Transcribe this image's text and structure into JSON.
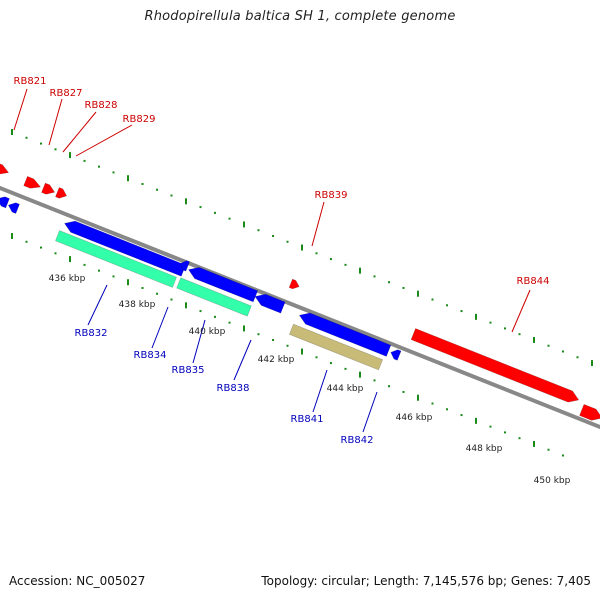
{
  "title": "Rhodopirellula baltica SH 1, complete genome",
  "footer": {
    "accession": "Accession: NC_005027",
    "summary": "Topology: circular; Length: 7,145,576 bp; Genes: 7,405"
  },
  "colors": {
    "forward_gene": "#ff0000",
    "reverse_gene": "#0000ff",
    "rna_gene": "#33ffaa",
    "other_gene": "#c8bb78",
    "backbone": "#888888",
    "tick": "#1a8a1a",
    "forward_label": "#cc0000",
    "reverse_label": "#0000bb",
    "scale_label": "#222222"
  },
  "scale_labels": [
    "436 kbp",
    "438 kbp",
    "440 kbp",
    "442 kbp",
    "444 kbp",
    "446 kbp",
    "448 kbp",
    "450 kbp"
  ],
  "forward_genes": [
    "RB821",
    "RB827",
    "RB828",
    "RB829",
    "RB839",
    "RB844"
  ],
  "reverse_genes": [
    "RB832",
    "RB834",
    "RB835",
    "RB838",
    "RB841",
    "RB842"
  ]
}
